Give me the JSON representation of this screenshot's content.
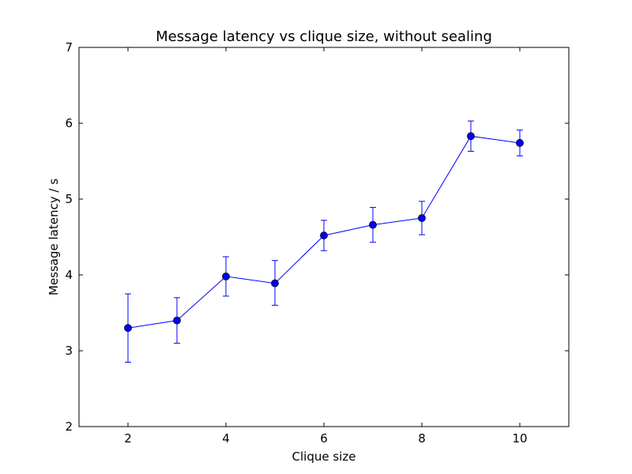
{
  "chart_data": {
    "type": "line",
    "title": "Message latency vs clique size, without sealing",
    "xlabel": "Clique size",
    "ylabel": "Message latency / s",
    "xlim": [
      1,
      11
    ],
    "ylim": [
      2,
      7
    ],
    "xticks": [
      2,
      4,
      6,
      8,
      10
    ],
    "yticks": [
      2,
      3,
      4,
      5,
      6,
      7
    ],
    "grid": false,
    "line_color": "#0000ff",
    "marker": "circle",
    "series": [
      {
        "x": [
          2,
          3,
          4,
          5,
          6,
          7,
          8,
          9,
          10
        ],
        "y": [
          3.3,
          3.4,
          3.98,
          3.89,
          4.52,
          4.66,
          4.75,
          5.83,
          5.74
        ],
        "error_low": [
          2.85,
          3.1,
          3.72,
          3.6,
          4.32,
          4.43,
          4.53,
          5.63,
          5.57
        ],
        "error_high": [
          3.75,
          3.7,
          4.24,
          4.19,
          4.72,
          4.89,
          4.97,
          6.03,
          5.91
        ]
      }
    ]
  }
}
